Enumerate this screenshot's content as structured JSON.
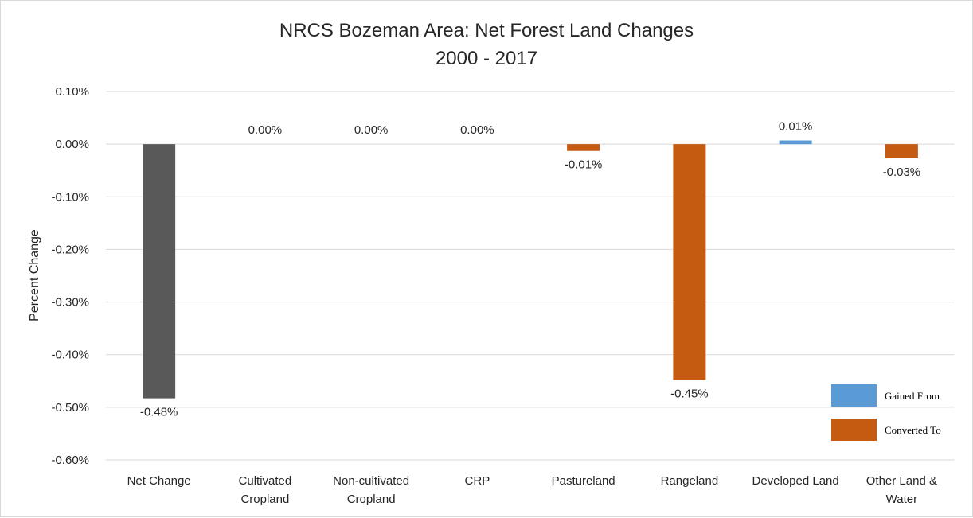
{
  "chart_data": {
    "type": "bar",
    "title_lines": [
      "NRCS Bozeman Area: Net Forest Land Changes",
      "2000 - 2017"
    ],
    "ylabel": "Percent Change",
    "xlabel": "",
    "ylim": [
      -0.6,
      0.1
    ],
    "yticks": [
      0.1,
      0.0,
      -0.1,
      -0.2,
      -0.3,
      -0.4,
      -0.5,
      -0.6
    ],
    "ytick_labels": [
      "0.10%",
      "0.00%",
      "-0.10%",
      "-0.20%",
      "-0.30%",
      "-0.40%",
      "-0.50%",
      "-0.60%"
    ],
    "grid": true,
    "categories": [
      [
        "Net Change"
      ],
      [
        "Cultivated",
        "Cropland"
      ],
      [
        "Non-cultivated",
        "Cropland"
      ],
      [
        "CRP"
      ],
      [
        "Pastureland"
      ],
      [
        "Rangeland"
      ],
      [
        "Developed Land"
      ],
      [
        "Other Land &",
        "Water"
      ]
    ],
    "values": [
      -0.483,
      0.0,
      0.0,
      0.0,
      -0.013,
      -0.448,
      0.007,
      -0.027
    ],
    "value_labels": [
      "-0.48%",
      "0.00%",
      "0.00%",
      "0.00%",
      "-0.01%",
      "-0.45%",
      "0.01%",
      "-0.03%"
    ],
    "bar_kind": [
      "net",
      "converted",
      "converted",
      "converted",
      "converted",
      "converted",
      "gained",
      "converted"
    ],
    "colors": {
      "net": "#595959",
      "gained": "#5b9bd5",
      "converted": "#c55a11",
      "grid": "#d9d9d9"
    },
    "legend": {
      "position": "bottom-right",
      "entries": [
        {
          "label": "Gained From",
          "kind": "gained"
        },
        {
          "label": "Converted To",
          "kind": "converted"
        }
      ]
    }
  }
}
